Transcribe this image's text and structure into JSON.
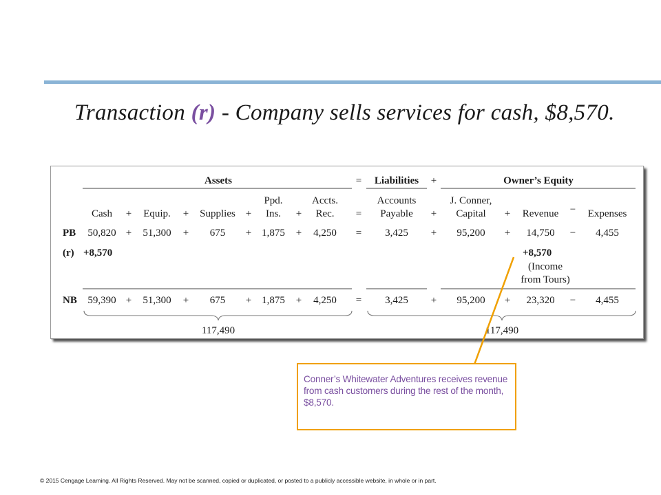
{
  "slide": {
    "title_prefix": "Transaction ",
    "title_code": "(r)",
    "title_suffix": " - Company sells services for cash, $8,570."
  },
  "table": {
    "group_headers": {
      "assets": "Assets",
      "liabilities": "Liabilities",
      "owners_equity": "Owner’s Equity"
    },
    "columns": {
      "cash": "Cash",
      "equip": "Equip.",
      "supplies": "Supplies",
      "ppd_line1": "Ppd.",
      "ppd_line2": "Ins.",
      "accts_line1": "Accts.",
      "accts_line2": "Rec.",
      "ap_line1": "Accounts",
      "ap_line2": "Payable",
      "cap_line1": "J. Conner,",
      "cap_line2": "Capital",
      "revenue": "Revenue",
      "expenses": "Expenses"
    },
    "rows": {
      "pb": {
        "label": "PB",
        "cash": "50,820",
        "equip": "51,300",
        "supplies": "675",
        "ppd": "1,875",
        "accts": "4,250",
        "ap": "3,425",
        "capital": "95,200",
        "revenue": "14,750",
        "expenses": "4,455"
      },
      "r": {
        "label": "(r)",
        "cash": "+8,570",
        "revenue": "+8,570",
        "revenue_note1": "(Income",
        "revenue_note2": "from Tours)"
      },
      "nb": {
        "label": "NB",
        "cash": "59,390",
        "equip": "51,300",
        "supplies": "675",
        "ppd": "1,875",
        "accts": "4,250",
        "ap": "3,425",
        "capital": "95,200",
        "revenue": "23,320",
        "expenses": "4,455"
      }
    },
    "totals": {
      "assets": "117,490",
      "liab_equity": "117,490"
    },
    "ops": {
      "plus": "+",
      "minus": "−",
      "equals": "="
    }
  },
  "callout": {
    "text": "Conner’s Whitewater Adventures receives revenue from cash customers during the rest of the month, $8,570."
  },
  "footer": {
    "text": "© 2015 Cengage Learning. All Rights Reserved. May not be scanned, copied or duplicated, or posted to a publicly accessible website, in whole or in part."
  },
  "colors": {
    "accent_rule": "#8ab4d6",
    "callout_border": "#f0a000",
    "callout_text": "#7a4fa0"
  }
}
